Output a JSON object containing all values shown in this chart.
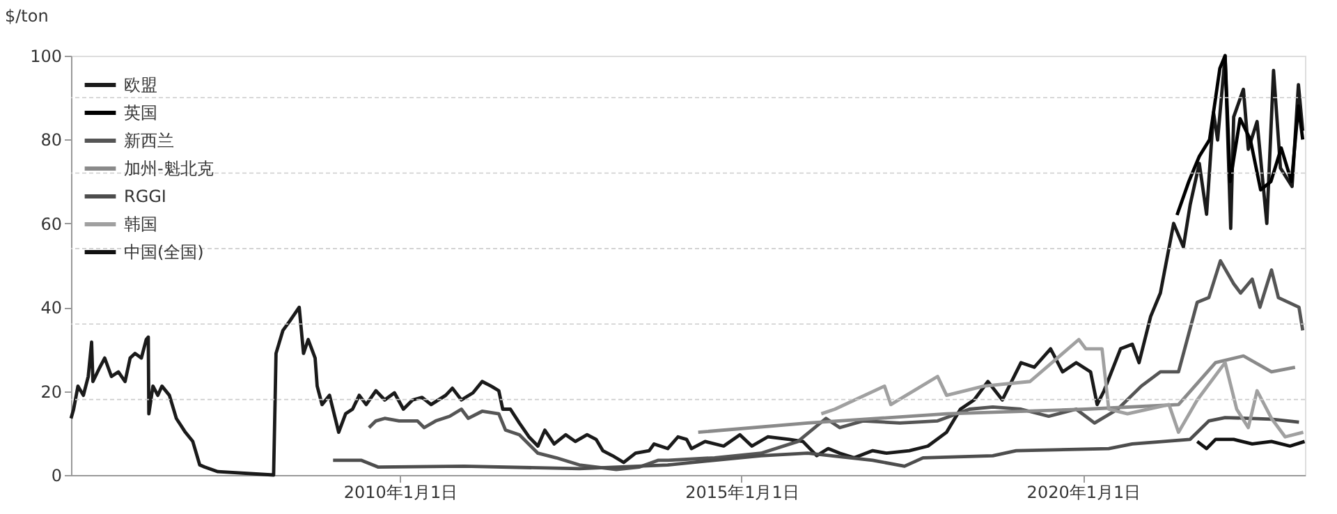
{
  "chart_data": {
    "type": "line",
    "ylabel": "$/ton",
    "xlim": [
      "2005-03-09",
      "2023-04-01"
    ],
    "ylim": [
      0,
      100
    ],
    "xticks": [
      {
        "value": "2010-01-01",
        "label": "2010年1月1日"
      },
      {
        "value": "2015-01-01",
        "label": "2015年1月1日"
      },
      {
        "value": "2020-01-01",
        "label": "2020年1月1日"
      }
    ],
    "yticks": [
      0,
      {
        "value": 18,
        "label": null
      },
      20,
      {
        "value": 36,
        "label": null
      },
      40,
      {
        "value": 54,
        "label": null
      },
      60,
      {
        "value": 72,
        "label": null
      },
      80,
      {
        "value": 90,
        "label": null
      },
      100
    ],
    "grid": "y",
    "legend": "top left",
    "series": [
      {
        "name": "欧盟",
        "color": "#1a1a1a",
        "x": [
          "2005-03-09",
          "2005-03-23",
          "2005-04-15",
          "2005-05-14",
          "2005-06-09",
          "2005-06-27",
          "2005-07-04",
          "2005-08-10",
          "2005-09-05",
          "2005-10-11",
          "2005-11-17",
          "2005-12-23",
          "2006-01-19",
          "2006-02-14",
          "2006-03-20",
          "2006-04-15",
          "2006-04-26",
          "2006-04-29",
          "2006-05-21",
          "2006-06-16",
          "2006-07-08",
          "2006-08-17",
          "2006-09-23",
          "2006-11-10",
          "2006-12-20",
          "2007-01-26",
          "2007-02-21",
          "2007-05-03",
          "2008-02-25",
          "2008-03-09",
          "2008-04-15",
          "2008-05-21",
          "2008-07-11",
          "2008-08-03",
          "2008-08-28",
          "2008-10-04",
          "2008-10-15",
          "2008-11-10",
          "2008-12-20",
          "2009-02-07",
          "2009-03-16",
          "2009-04-22",
          "2009-05-28",
          "2009-07-04",
          "2009-08-25",
          "2009-10-11",
          "2009-12-02",
          "2010-01-19",
          "2010-03-09",
          "2010-04-29",
          "2010-06-16",
          "2010-09-02",
          "2010-10-08",
          "2010-11-25",
          "2011-01-26",
          "2011-03-16",
          "2011-05-03",
          "2011-06-13",
          "2011-07-04",
          "2011-08-14",
          "2011-10-01",
          "2011-11-21",
          "2012-01-08",
          "2012-02-14",
          "2012-04-04",
          "2012-06-05",
          "2012-07-26",
          "2012-09-27",
          "2012-11-14",
          "2012-12-20",
          "2013-02-10",
          "2013-04-11",
          "2013-06-13",
          "2013-08-25",
          "2013-09-20",
          "2013-12-02",
          "2014-01-26",
          "2014-03-13",
          "2014-04-08",
          "2014-06-20",
          "2014-09-27",
          "2014-12-23",
          "2015-02-25",
          "2015-05-21",
          "2015-09-13",
          "2015-11-25",
          "2016-02-07",
          "2016-04-08",
          "2016-06-09",
          "2016-08-25",
          "2016-12-02",
          "2017-02-14",
          "2017-06-16",
          "2017-09-23",
          "2018-01-01",
          "2018-03-16",
          "2018-05-28",
          "2018-08-10",
          "2018-10-26",
          "2019-02-03",
          "2019-04-15",
          "2019-07-11",
          "2019-09-13",
          "2019-11-25",
          "2020-02-10",
          "2020-03-16",
          "2020-04-22",
          "2020-07-19",
          "2020-09-20",
          "2020-10-26",
          "2020-12-27",
          "2021-02-17",
          "2021-04-29",
          "2021-06-20",
          "2021-07-26",
          "2021-09-13",
          "2021-10-22",
          "2021-11-28",
          "2021-12-20",
          "2022-01-29",
          "2022-02-28",
          "2022-03-16",
          "2022-05-07",
          "2022-06-02",
          "2022-07-19",
          "2022-09-09",
          "2022-10-15",
          "2022-11-21",
          "2023-01-22",
          "2023-02-25",
          "2023-03-20"
        ],
        "values": [
          13.5,
          15.7,
          21.2,
          19,
          23.5,
          31.7,
          22.3,
          25.7,
          27.9,
          23.5,
          24.6,
          22.3,
          27.9,
          29,
          27.9,
          32.3,
          32.9,
          14.6,
          21.2,
          19,
          21.2,
          19,
          13.5,
          10.2,
          8,
          2.4,
          1.9,
          0.8,
          0,
          29,
          34.5,
          36.7,
          40,
          29,
          32.3,
          27.9,
          21.2,
          16.8,
          19,
          10.2,
          14.6,
          15.7,
          19,
          16.8,
          20.1,
          17.9,
          19.6,
          15.7,
          17.9,
          18.5,
          16.8,
          19,
          20.7,
          17.9,
          19.6,
          22.3,
          21.2,
          20.1,
          15.7,
          15.7,
          12.4,
          9.1,
          6.9,
          10.7,
          7.4,
          9.6,
          8,
          9.6,
          8.5,
          5.8,
          4.6,
          3,
          5.2,
          5.8,
          7.4,
          6.3,
          9.1,
          8.5,
          6.3,
          8,
          6.9,
          9.6,
          6.9,
          9.1,
          8.5,
          8,
          4.6,
          6.3,
          5.2,
          4.1,
          5.8,
          5.2,
          5.8,
          6.9,
          10.2,
          15.7,
          17.9,
          22.3,
          17.9,
          26.8,
          25.7,
          30.1,
          24.6,
          26.8,
          24.6,
          16.8,
          20.1,
          30.1,
          31.2,
          26.8,
          37.8,
          43.4,
          60,
          54.4,
          64.4,
          74.3,
          62.2,
          86.5,
          79.9,
          100,
          58.8,
          85.4,
          92,
          77.7,
          84.3,
          60,
          96.5,
          73.2,
          68.8,
          93.1,
          82.1
        ]
      },
      {
        "name": "英国",
        "color": "#000000",
        "x": [
          "2021-05-17",
          "2021-07-19",
          "2021-09-13",
          "2021-11-07",
          "2022-01-01",
          "2022-01-29",
          "2022-02-25",
          "2022-04-19",
          "2022-06-13",
          "2022-08-07",
          "2022-10-01",
          "2022-11-25",
          "2023-01-19",
          "2023-02-25",
          "2023-03-20"
        ],
        "values": [
          62,
          70,
          76,
          80,
          97,
          100,
          70,
          85,
          80,
          68,
          70,
          78,
          70,
          88,
          80
        ]
      },
      {
        "name": "新西兰",
        "color": "#555555",
        "x": [
          "2009-07-19",
          "2009-08-25",
          "2009-10-11",
          "2009-12-27",
          "2010-04-04",
          "2010-05-10",
          "2010-07-11",
          "2010-09-23",
          "2010-11-25",
          "2011-01-01",
          "2011-03-16",
          "2011-06-13",
          "2011-07-19",
          "2011-10-01",
          "2012-01-08",
          "2012-04-15",
          "2012-08-17",
          "2013-03-02",
          "2013-07-04",
          "2013-10-11",
          "2013-12-05",
          "2014-08-10",
          "2015-04-15",
          "2015-10-29",
          "2016-03-27",
          "2016-06-09",
          "2016-10-11",
          "2017-04-26",
          "2017-11-14",
          "2018-05-03",
          "2018-09-05",
          "2019-02-03",
          "2019-07-01",
          "2019-11-25",
          "2020-03-02",
          "2020-07-04",
          "2020-11-07",
          "2021-02-17",
          "2021-05-25",
          "2021-09-02",
          "2021-11-03",
          "2022-01-04",
          "2022-03-16",
          "2022-04-22",
          "2022-06-23",
          "2022-08-03",
          "2022-10-04",
          "2022-11-10",
          "2023-02-28",
          "2023-03-20"
        ],
        "values": [
          11.3,
          12.9,
          13.5,
          12.9,
          12.9,
          11.3,
          12.9,
          14,
          15.7,
          13.5,
          15.2,
          14.6,
          10.7,
          9.6,
          5.2,
          4.1,
          2.4,
          1.3,
          1.9,
          3.5,
          3.5,
          4.1,
          5.2,
          8,
          13.5,
          11.3,
          12.9,
          12.4,
          12.9,
          15.7,
          16.2,
          15.7,
          14,
          15.7,
          12.4,
          15.7,
          21.2,
          24.6,
          24.6,
          41.2,
          42.3,
          51.1,
          45.6,
          43.4,
          46.7,
          40,
          48.9,
          42.3,
          40,
          34.5
        ]
      },
      {
        "name": "加州-魁北克",
        "color": "#8a8a8a",
        "x": [
          "2014-05-14",
          "2015-12-20",
          "2018-01-01",
          "2020-01-15",
          "2021-05-25",
          "2021-12-09",
          "2022-05-07",
          "2022-10-04",
          "2023-02-07"
        ],
        "values": [
          10.2,
          12.4,
          14.6,
          15.7,
          16.8,
          26.8,
          28.4,
          24.6,
          25.7
        ]
      },
      {
        "name": "RGGI",
        "color": "#4d4d4d",
        "x": [
          "2009-01-08",
          "2009-06-09",
          "2009-09-05",
          "2010-12-09",
          "2012-08-17",
          "2013-12-02",
          "2015-04-15",
          "2015-12-20",
          "2016-12-02",
          "2017-05-21",
          "2017-08-28",
          "2018-09-05",
          "2019-01-08",
          "2020-05-17",
          "2020-09-20",
          "2021-07-26",
          "2021-11-03",
          "2022-01-29",
          "2022-10-04",
          "2023-02-28"
        ],
        "values": [
          3.5,
          3.5,
          1.9,
          2.1,
          1.5,
          2.4,
          4.6,
          5.2,
          3.5,
          2.1,
          4.1,
          4.6,
          5.8,
          6.3,
          7.4,
          8.5,
          12.9,
          13.7,
          13.3,
          12.6
        ]
      },
      {
        "name": "韩国",
        "color": "#a0a0a0",
        "x": [
          "2016-03-02",
          "2016-05-14",
          "2017-02-03",
          "2017-03-09",
          "2017-11-14",
          "2018-01-01",
          "2018-07-19",
          "2019-03-23",
          "2019-12-09",
          "2020-01-15",
          "2020-04-11",
          "2020-05-17",
          "2020-08-25",
          "2021-04-04",
          "2021-05-25",
          "2021-09-02",
          "2022-01-29",
          "2022-04-01",
          "2022-06-02",
          "2022-07-19",
          "2022-10-04",
          "2022-12-16",
          "2023-03-23"
        ],
        "values": [
          14.6,
          15.7,
          21.2,
          16.8,
          23.5,
          19,
          21.2,
          22.3,
          32.3,
          30.1,
          30.1,
          15.7,
          14.6,
          16.8,
          10.2,
          17.9,
          26.8,
          15.7,
          11.3,
          20.1,
          13.5,
          9.1,
          10.2
        ]
      },
      {
        "name": "中国(全国)",
        "color": "#111111",
        "x": [
          "2021-09-02",
          "2021-10-22",
          "2021-12-09",
          "2022-03-16",
          "2022-06-23",
          "2022-10-04",
          "2023-01-11",
          "2023-03-30"
        ],
        "values": [
          8,
          6.3,
          8.5,
          8.5,
          7.4,
          8,
          6.9,
          8
        ]
      }
    ]
  }
}
